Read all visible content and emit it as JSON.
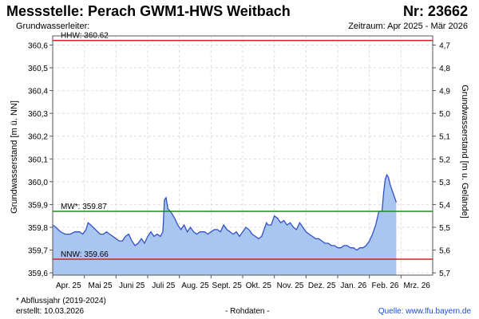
{
  "header": {
    "title": "Messstelle: Perach GWM1-HWS Weitbach",
    "number": "Nr: 23662",
    "subtitle": "Grundwasserleiter:",
    "period": "Zeitraum: Apr 2025 - Mär 2026"
  },
  "footer": {
    "note": "* Abflussjahr (2019-2024)",
    "created": "erstellt:  10.03.2026",
    "raw": "- Rohdaten -",
    "source": "Quelle:  www.lfu.bayern.de"
  },
  "chart_data": {
    "type": "area",
    "title": "Messstelle: Perach GWM1-HWS Weitbach",
    "ylabel_left": "Grundwasserstand [m ü. NN]",
    "ylabel_right": "Grundwasserstand [m u. Gelände]",
    "y_left_ticks": [
      "360,6",
      "360,5",
      "360,4",
      "360,3",
      "360,2",
      "360,1",
      "360,0",
      "359,9",
      "359,8",
      "359,7",
      "359,6"
    ],
    "y_right_ticks": [
      "4,7",
      "4,8",
      "4,9",
      "5,0",
      "5,1",
      "5,2",
      "5,3",
      "5,4",
      "5,5",
      "5,6",
      "5,7"
    ],
    "x_tick_labels": [
      "Apr. 25",
      "Mai 25",
      "Juni 25",
      "Juli 25",
      "Aug. 25",
      "Sept. 25",
      "Okt. 25",
      "Nov. 25",
      "Dez. 25",
      "Jan. 26",
      "Feb. 26",
      "Mrz. 26"
    ],
    "x_ticks_months": [
      0,
      1,
      2,
      3,
      4,
      5,
      6,
      7,
      8,
      9,
      10,
      11
    ],
    "xlim_months": [
      0,
      12
    ],
    "ylim": [
      359.59,
      360.64
    ],
    "grid": true,
    "reference_lines": [
      {
        "label": "HHW: 360.62",
        "value": 360.62,
        "color": "#d62020"
      },
      {
        "label": "MW*: 359.87",
        "value": 359.87,
        "color": "#1f8a1f"
      },
      {
        "label": "NNW: 359.66",
        "value": 359.66,
        "color": "#d62020"
      }
    ],
    "series": [
      {
        "color": "#3350c8",
        "fill": "#a8c6f0",
        "points": [
          [
            0.0,
            359.81
          ],
          [
            0.1,
            359.8
          ],
          [
            0.25,
            359.78
          ],
          [
            0.4,
            359.77
          ],
          [
            0.55,
            359.77
          ],
          [
            0.7,
            359.78
          ],
          [
            0.85,
            359.78
          ],
          [
            0.95,
            359.77
          ],
          [
            1.05,
            359.79
          ],
          [
            1.12,
            359.82
          ],
          [
            1.2,
            359.81
          ],
          [
            1.35,
            359.79
          ],
          [
            1.5,
            359.77
          ],
          [
            1.6,
            359.77
          ],
          [
            1.7,
            359.78
          ],
          [
            1.8,
            359.77
          ],
          [
            1.9,
            359.76
          ],
          [
            2.0,
            359.75
          ],
          [
            2.1,
            359.74
          ],
          [
            2.2,
            359.74
          ],
          [
            2.3,
            359.76
          ],
          [
            2.4,
            359.77
          ],
          [
            2.5,
            359.74
          ],
          [
            2.6,
            359.72
          ],
          [
            2.7,
            359.73
          ],
          [
            2.8,
            359.75
          ],
          [
            2.9,
            359.73
          ],
          [
            3.0,
            359.76
          ],
          [
            3.1,
            359.78
          ],
          [
            3.2,
            359.76
          ],
          [
            3.3,
            359.77
          ],
          [
            3.4,
            359.76
          ],
          [
            3.48,
            359.78
          ],
          [
            3.53,
            359.92
          ],
          [
            3.58,
            359.93
          ],
          [
            3.64,
            359.88
          ],
          [
            3.72,
            359.87
          ],
          [
            3.85,
            359.84
          ],
          [
            3.95,
            359.81
          ],
          [
            4.05,
            359.79
          ],
          [
            4.15,
            359.81
          ],
          [
            4.25,
            359.78
          ],
          [
            4.35,
            359.8
          ],
          [
            4.45,
            359.78
          ],
          [
            4.55,
            359.77
          ],
          [
            4.65,
            359.78
          ],
          [
            4.8,
            359.78
          ],
          [
            4.9,
            359.77
          ],
          [
            5.0,
            359.78
          ],
          [
            5.1,
            359.79
          ],
          [
            5.2,
            359.79
          ],
          [
            5.3,
            359.78
          ],
          [
            5.4,
            359.81
          ],
          [
            5.5,
            359.79
          ],
          [
            5.6,
            359.78
          ],
          [
            5.7,
            359.77
          ],
          [
            5.8,
            359.78
          ],
          [
            5.9,
            359.76
          ],
          [
            6.0,
            359.78
          ],
          [
            6.1,
            359.8
          ],
          [
            6.2,
            359.79
          ],
          [
            6.3,
            359.77
          ],
          [
            6.4,
            359.76
          ],
          [
            6.5,
            359.75
          ],
          [
            6.6,
            359.76
          ],
          [
            6.7,
            359.8
          ],
          [
            6.75,
            359.82
          ],
          [
            6.8,
            359.81
          ],
          [
            6.9,
            359.81
          ],
          [
            7.0,
            359.85
          ],
          [
            7.1,
            359.84
          ],
          [
            7.2,
            359.82
          ],
          [
            7.3,
            359.83
          ],
          [
            7.4,
            359.81
          ],
          [
            7.5,
            359.82
          ],
          [
            7.6,
            359.8
          ],
          [
            7.7,
            359.79
          ],
          [
            7.8,
            359.82
          ],
          [
            7.9,
            359.8
          ],
          [
            8.0,
            359.78
          ],
          [
            8.1,
            359.77
          ],
          [
            8.2,
            359.76
          ],
          [
            8.3,
            359.75
          ],
          [
            8.4,
            359.75
          ],
          [
            8.5,
            359.74
          ],
          [
            8.6,
            359.73
          ],
          [
            8.7,
            359.73
          ],
          [
            8.8,
            359.72
          ],
          [
            8.9,
            359.72
          ],
          [
            9.0,
            359.71
          ],
          [
            9.1,
            359.71
          ],
          [
            9.2,
            359.72
          ],
          [
            9.3,
            359.72
          ],
          [
            9.4,
            359.71
          ],
          [
            9.5,
            359.71
          ],
          [
            9.6,
            359.7
          ],
          [
            9.7,
            359.71
          ],
          [
            9.8,
            359.71
          ],
          [
            9.9,
            359.72
          ],
          [
            10.0,
            359.74
          ],
          [
            10.1,
            359.77
          ],
          [
            10.2,
            359.81
          ],
          [
            10.3,
            359.87
          ],
          [
            10.4,
            359.87
          ],
          [
            10.45,
            359.95
          ],
          [
            10.5,
            360.01
          ],
          [
            10.55,
            360.03
          ],
          [
            10.6,
            360.02
          ],
          [
            10.65,
            359.99
          ],
          [
            10.7,
            359.97
          ],
          [
            10.75,
            359.95
          ],
          [
            10.8,
            359.93
          ],
          [
            10.85,
            359.91
          ]
        ]
      }
    ]
  }
}
